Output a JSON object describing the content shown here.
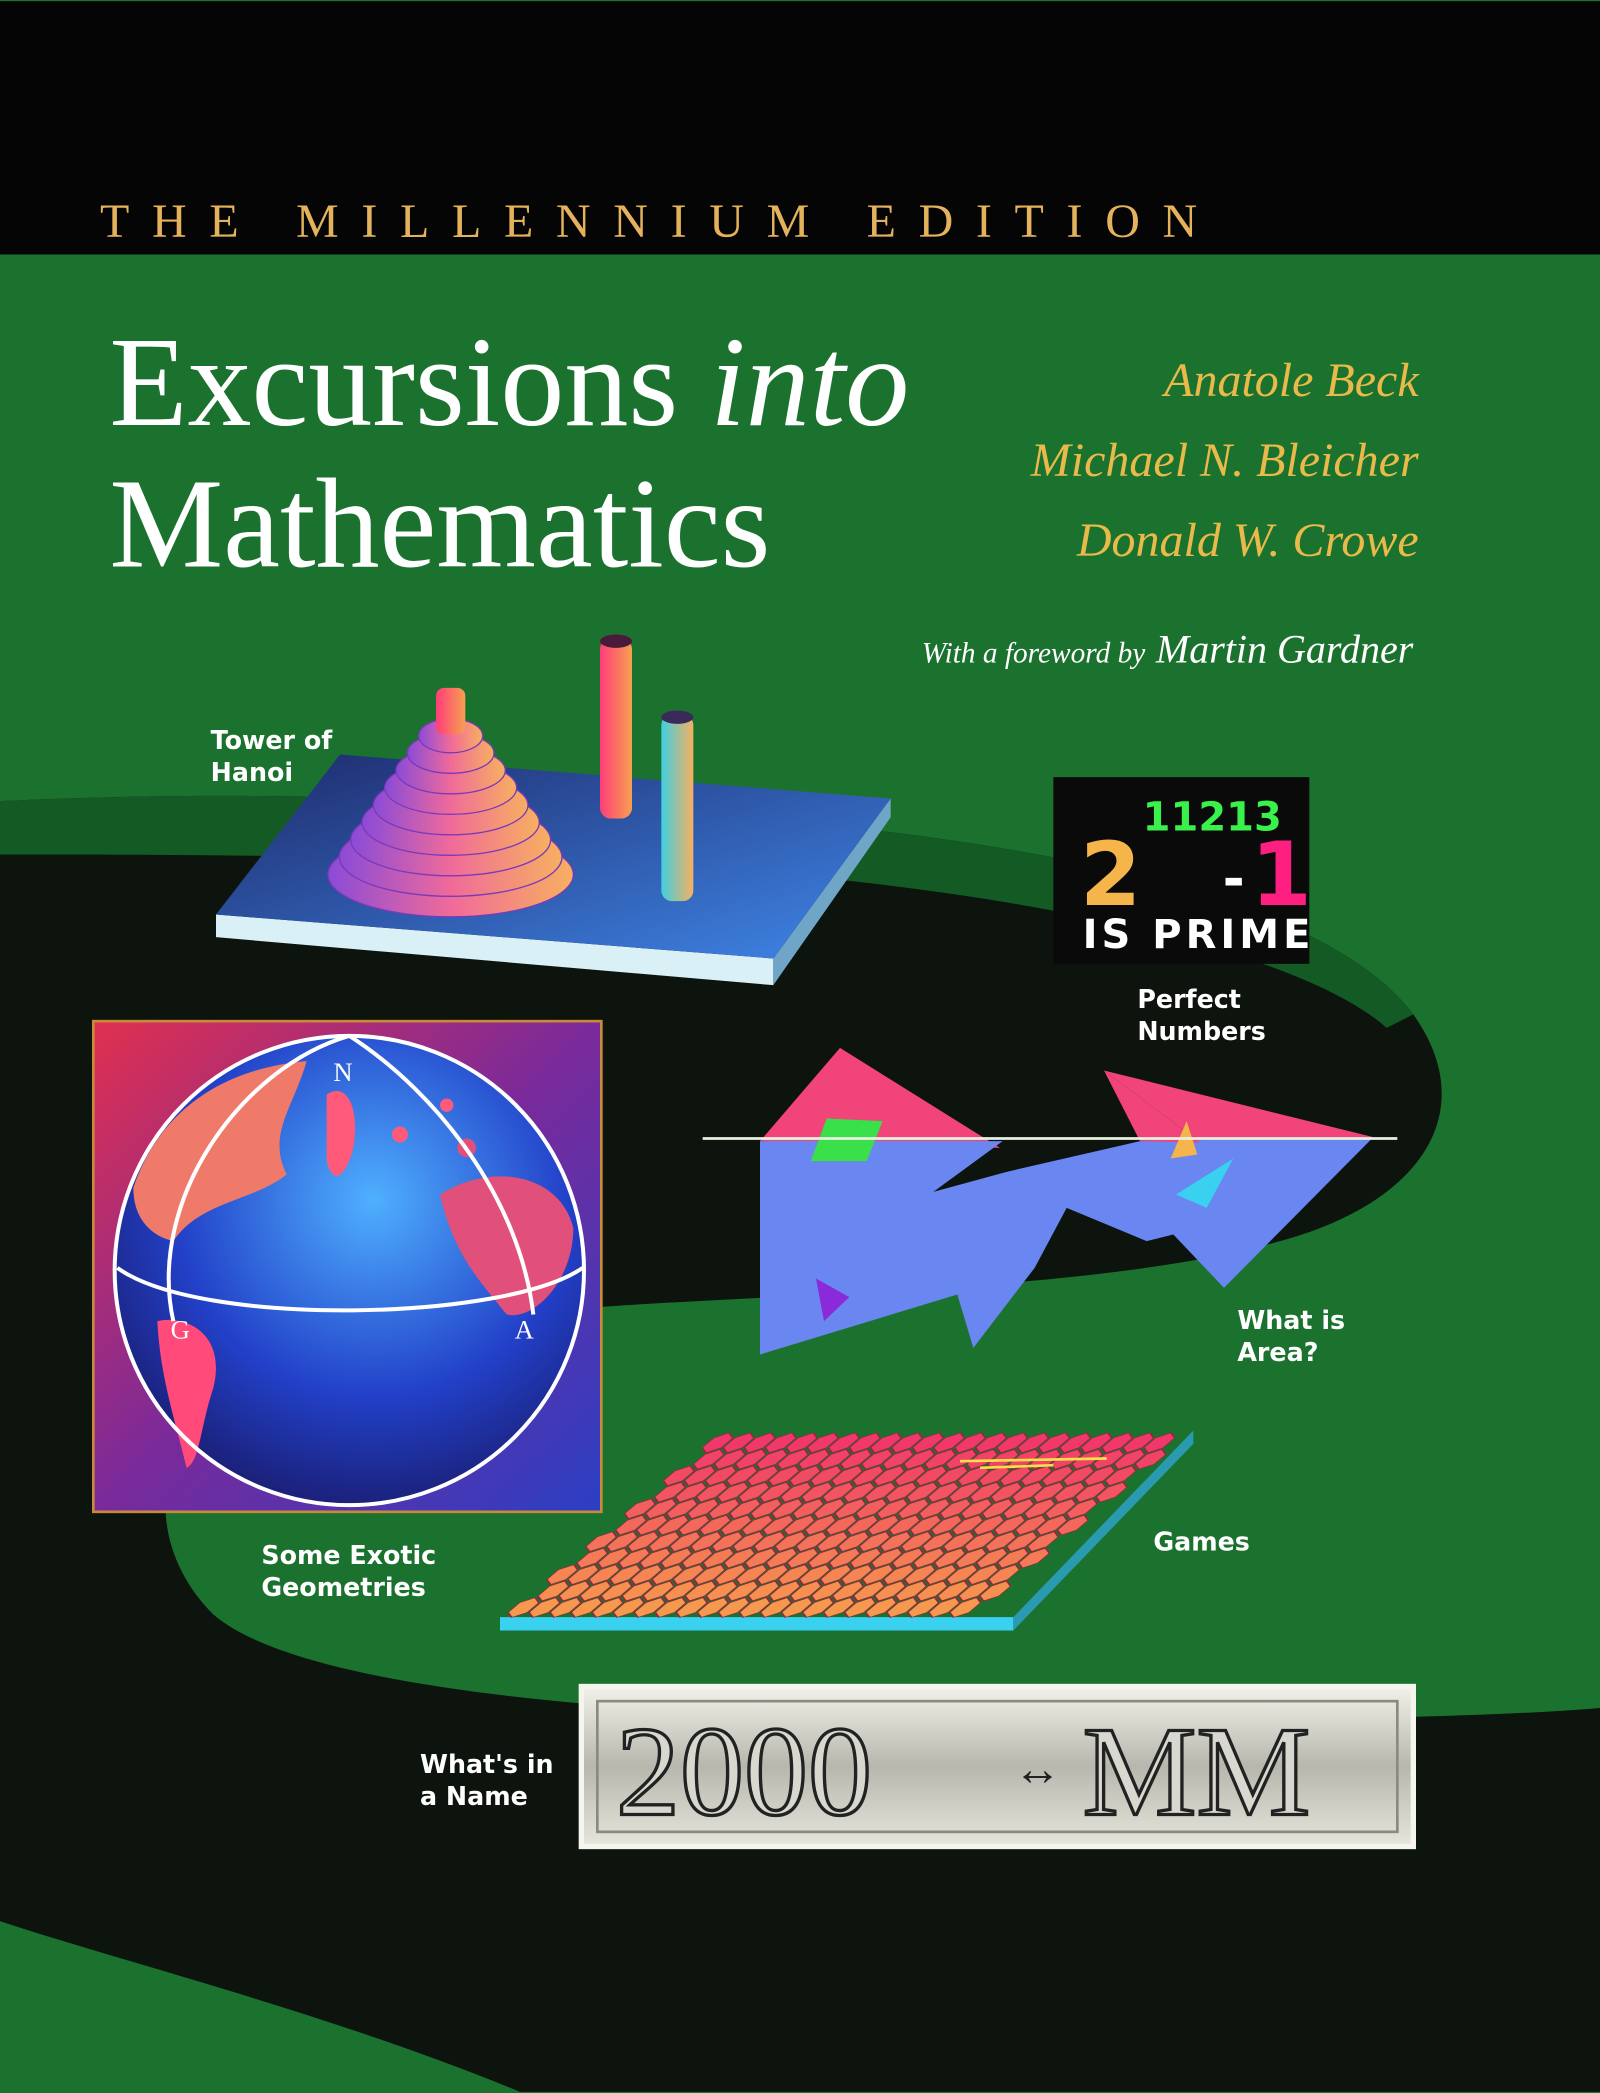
{
  "edition": "THE MILLENNIUM EDITION",
  "title": {
    "line1_roman": "Excursions ",
    "line1_italic": "into",
    "line2": "Mathematics"
  },
  "authors": [
    "Anatole Beck",
    "Michael N. Bleicher",
    "Donald W. Crowe"
  ],
  "foreword": {
    "prefix": "With a foreword by",
    "name": "Martin Gardner"
  },
  "captions": {
    "tower": [
      "Tower of",
      "Hanoi"
    ],
    "perfect": [
      "Perfect",
      "Numbers"
    ],
    "area": [
      "What is",
      "Area?"
    ],
    "geometries": [
      "Some Exotic",
      "Geometries"
    ],
    "games": [
      "Games"
    ],
    "name": [
      "What's in",
      "a Name"
    ]
  },
  "prime_box": {
    "base": "2",
    "exponent": "11213",
    "minus": "-",
    "one": "1",
    "label": "IS PRIME"
  },
  "globe_labels": {
    "north": "N",
    "g": "G",
    "a": "A"
  },
  "nameplate": {
    "left": "2000",
    "arrow": "↔",
    "right": "MM"
  },
  "colors": {
    "background_green": "#1b722f",
    "road": "#0c140d",
    "gold": "#e9b94a",
    "title_white": "#ffffff"
  }
}
